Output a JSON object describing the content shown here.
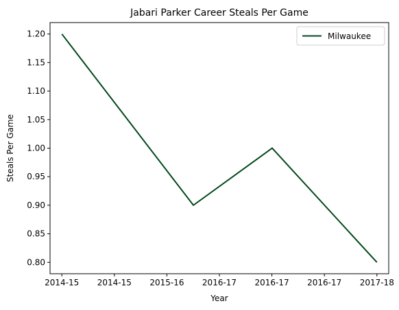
{
  "chart_data": {
    "type": "line",
    "title": "Jabari Parker Career Steals Per Game",
    "xlabel": "Year",
    "ylabel": "Steals Per Game",
    "x_tick_labels": [
      "2014-15",
      "2014-15",
      "2015-16",
      "2016-17",
      "2016-17",
      "2016-17",
      "2017-18"
    ],
    "y_ticks": [
      0.8,
      0.85,
      0.9,
      0.95,
      1.0,
      1.05,
      1.1,
      1.15,
      1.2
    ],
    "ylim": [
      0.78,
      1.22
    ],
    "xlim": [
      -0.15,
      4.15
    ],
    "x_positions": [
      0,
      1,
      2,
      3,
      4
    ],
    "series": [
      {
        "name": "Milwaukee",
        "color": "#00471B",
        "x": [
          "2014-15",
          "2015-16",
          "2016-17",
          "2017-18"
        ],
        "values": [
          1.2,
          0.9,
          1.0,
          0.8
        ]
      }
    ],
    "point_x_index": [
      0,
      1.67,
      2.67,
      4.0
    ],
    "legend_placement": "top-right",
    "grid": false
  }
}
